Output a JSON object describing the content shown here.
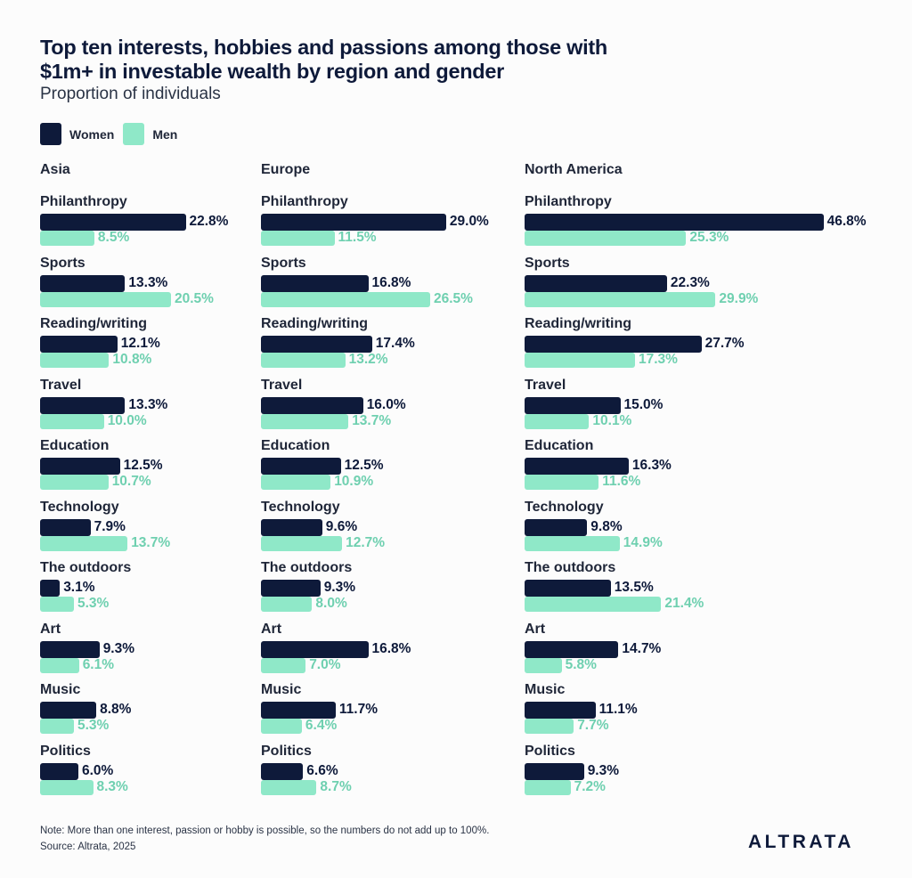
{
  "chart_data": {
    "type": "bar",
    "orientation": "horizontal",
    "title": "Top ten interests, hobbies and passions among those with $1m+ in investable wealth by region and gender",
    "subtitle": "Proportion of individuals",
    "legend": [
      {
        "name": "Women",
        "color": "#0e1a3a"
      },
      {
        "name": "Men",
        "color": "#8fe8c8"
      }
    ],
    "legend_position": "top-left",
    "categories": [
      "Philanthropy",
      "Sports",
      "Reading/writing",
      "Travel",
      "Education",
      "Technology",
      "The outdoors",
      "Art",
      "Music",
      "Politics"
    ],
    "panels": [
      {
        "region": "Asia",
        "series": [
          {
            "name": "Women",
            "values": [
              22.8,
              13.3,
              12.1,
              13.3,
              12.5,
              7.9,
              3.1,
              9.3,
              8.8,
              6.0
            ],
            "labels": [
              "22.8%",
              "13.3%",
              "12.1%",
              "13.3%",
              "12.5%",
              "7.9%",
              "3.1%",
              "9.3%",
              "8.8%",
              "6.0%"
            ]
          },
          {
            "name": "Men",
            "values": [
              8.5,
              20.5,
              10.8,
              10.0,
              10.7,
              13.7,
              5.3,
              6.1,
              5.3,
              8.3
            ],
            "labels": [
              "8.5%",
              "20.5%",
              "10.8%",
              "10.0%",
              "10.7%",
              "13.7%",
              "5.3%",
              "6.1%",
              "5.3%",
              "8.3%"
            ]
          }
        ]
      },
      {
        "region": "Europe",
        "series": [
          {
            "name": "Women",
            "values": [
              29.0,
              16.8,
              17.4,
              16.0,
              12.5,
              9.6,
              9.3,
              16.8,
              11.7,
              6.6
            ],
            "labels": [
              "29.0%",
              "16.8%",
              "17.4%",
              "16.0%",
              "12.5%",
              "9.6%",
              "9.3%",
              "16.8%",
              "11.7%",
              "6.6%"
            ]
          },
          {
            "name": "Men",
            "values": [
              11.5,
              26.5,
              13.2,
              13.7,
              10.9,
              12.7,
              8.0,
              7.0,
              6.4,
              8.7
            ],
            "labels": [
              "11.5%",
              "26.5%",
              "13.2%",
              "13.7%",
              "10.9%",
              "12.7%",
              "8.0%",
              "7.0%",
              "6.4%",
              "8.7%"
            ]
          }
        ]
      },
      {
        "region": "North America",
        "series": [
          {
            "name": "Women",
            "values": [
              46.8,
              22.3,
              27.7,
              15.0,
              16.3,
              9.8,
              13.5,
              14.7,
              11.1,
              9.3
            ],
            "labels": [
              "46.8%",
              "22.3%",
              "27.7%",
              "15.0%",
              "16.3%",
              "9.8%",
              "13.5%",
              "14.7%",
              "11.1%",
              "9.3%"
            ]
          },
          {
            "name": "Men",
            "values": [
              25.3,
              29.9,
              17.3,
              10.1,
              11.6,
              14.9,
              21.4,
              5.8,
              7.7,
              7.2
            ],
            "labels": [
              "25.3%",
              "29.9%",
              "17.3%",
              "10.1%",
              "11.6%",
              "14.9%",
              "21.4%",
              "5.8%",
              "7.7%",
              "7.2%"
            ]
          }
        ]
      }
    ],
    "xlabel": "",
    "ylabel": "",
    "grid": false
  },
  "note": "Note: More than one interest, passion or hobby is possible, so the numbers do not add up to 100%.",
  "source": "Source: Altrata, 2025",
  "logo": "ALTRATA"
}
